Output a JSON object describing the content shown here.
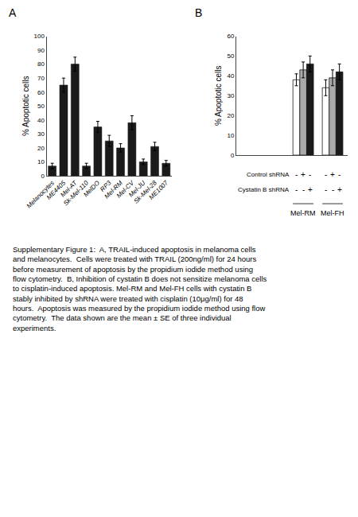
{
  "chart_data": [
    {
      "type": "bar",
      "title": "A",
      "categories": [
        "Melanocytes",
        "ME4405",
        "Mel-AT",
        "Sk-Mel-110",
        "MelDO",
        "RP3",
        "Mel-RM",
        "Mel-CV",
        "Mel-JU",
        "Sk-Mel-28",
        "ME1007"
      ],
      "values": [
        7,
        65,
        80,
        7,
        35,
        25,
        20,
        38,
        10,
        21,
        9
      ],
      "errors": [
        2,
        5,
        5,
        2,
        4,
        4,
        3,
        5,
        2,
        3,
        2
      ],
      "color": "#1a1a1a",
      "ylabel": "% Apoptotic cells",
      "ylim": [
        0,
        100
      ],
      "yticks": [
        0,
        10,
        20,
        30,
        40,
        50,
        60,
        70,
        80,
        90,
        100
      ],
      "grid": false
    },
    {
      "type": "bar",
      "title": "B",
      "categories": [
        "Mel-RM",
        "Mel-FH"
      ],
      "series": [
        {
          "color": "#ffffff",
          "values": [
            38,
            34
          ],
          "errors": [
            3,
            4
          ]
        },
        {
          "color": "#aaaaaa",
          "values": [
            43,
            39
          ],
          "errors": [
            4,
            4
          ]
        },
        {
          "color": "#1a1a1a",
          "values": [
            46,
            42
          ],
          "errors": [
            4,
            4
          ]
        }
      ],
      "edge_color": "#1a1a1a",
      "ylabel": "% Apoptotic cells",
      "ylim": [
        0,
        60
      ],
      "yticks": [
        0,
        10,
        20,
        30,
        40,
        50,
        60
      ],
      "grid": false,
      "tick_labels": "y",
      "sign_rows": [
        {
          "label": "Control shRNA",
          "signs": [
            "-",
            "+",
            "-",
            "-",
            "+",
            "-"
          ]
        },
        {
          "label": "Cystatin B shRNA",
          "signs": [
            "-",
            "-",
            "+",
            "-",
            "-",
            "+"
          ]
        }
      ]
    }
  ],
  "caption": "Supplementary Figure 1:  A, TRAIL-induced apoptosis in melanoma cells\nand melanocytes.  Cells were treated with TRAIL (200ng/ml) for 24 hours\nbefore measurement of apoptosis by the propidium iodide method using\nflow cytometry.  B, Inhibition of cystatin B does not sensitize melanoma cells\nto cisplatin-induced apoptosis. Mel-RM and Mel-FH cells with cystatin B\nstably inhibited by shRNA were treated with cisplatin (10μg/ml) for 48\nhours.  Apoptosis was measured by the propidium iodide method using flow\ncytometry.  The data shown are the mean ± SE of three individual\nexperiments."
}
